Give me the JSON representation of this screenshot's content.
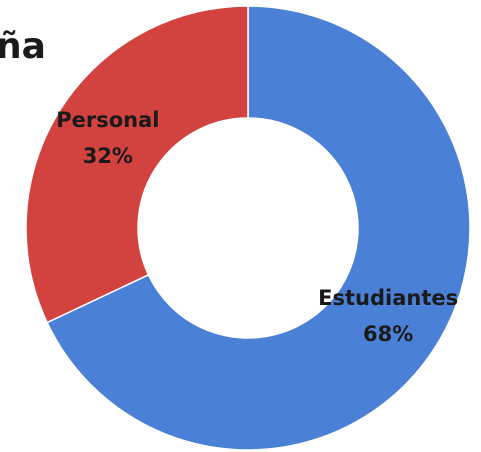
{
  "chart_data": {
    "type": "pie",
    "donut": true,
    "title": "ña",
    "categories": [
      "Estudiantes",
      "Personal"
    ],
    "values": [
      68,
      32
    ],
    "value_labels": [
      "68%",
      "32%"
    ],
    "colors": [
      "#4a80d6",
      "#d2423f"
    ]
  }
}
